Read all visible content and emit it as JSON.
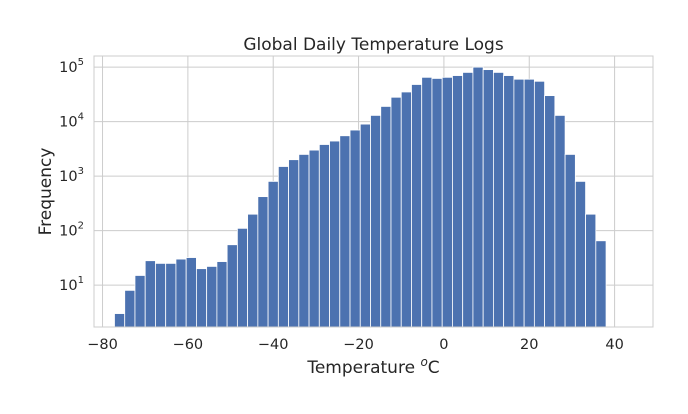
{
  "chart_data": {
    "type": "bar",
    "title": "Global Daily Temperature Logs",
    "xlabel_main": "Temperature ",
    "xlabel_sup": "o",
    "xlabel_unit": "C",
    "ylabel": "Frequency",
    "xlim": [
      -82,
      49
    ],
    "ylim": [
      1.7,
      160000
    ],
    "y_scale": "log",
    "x_ticks": [
      -80,
      -60,
      -40,
      -20,
      0,
      20,
      40
    ],
    "x_tick_labels": [
      "−80",
      "−60",
      "−40",
      "−20",
      "0",
      "20",
      "40"
    ],
    "y_ticks": [
      {
        "value": 10,
        "base": "10",
        "exp": "1"
      },
      {
        "value": 100,
        "base": "10",
        "exp": "2"
      },
      {
        "value": 1000,
        "base": "10",
        "exp": "3"
      },
      {
        "value": 10000,
        "base": "10",
        "exp": "4"
      },
      {
        "value": 100000,
        "base": "10",
        "exp": "5"
      }
    ],
    "grid": true,
    "bar_color": "#4c72b0",
    "bins": {
      "start": -77.2,
      "width": 2.4,
      "values": [
        3,
        8,
        15,
        28,
        25,
        25,
        30,
        32,
        20,
        22,
        27,
        55,
        110,
        200,
        420,
        800,
        1500,
        2000,
        2500,
        3000,
        3800,
        4400,
        5500,
        7000,
        9000,
        13000,
        19000,
        28000,
        35000,
        48000,
        65000,
        62000,
        65000,
        70000,
        80000,
        100000,
        90000,
        80000,
        70000,
        60000,
        60000,
        55000,
        30000,
        13000,
        2500,
        800,
        200,
        65
      ]
    }
  }
}
